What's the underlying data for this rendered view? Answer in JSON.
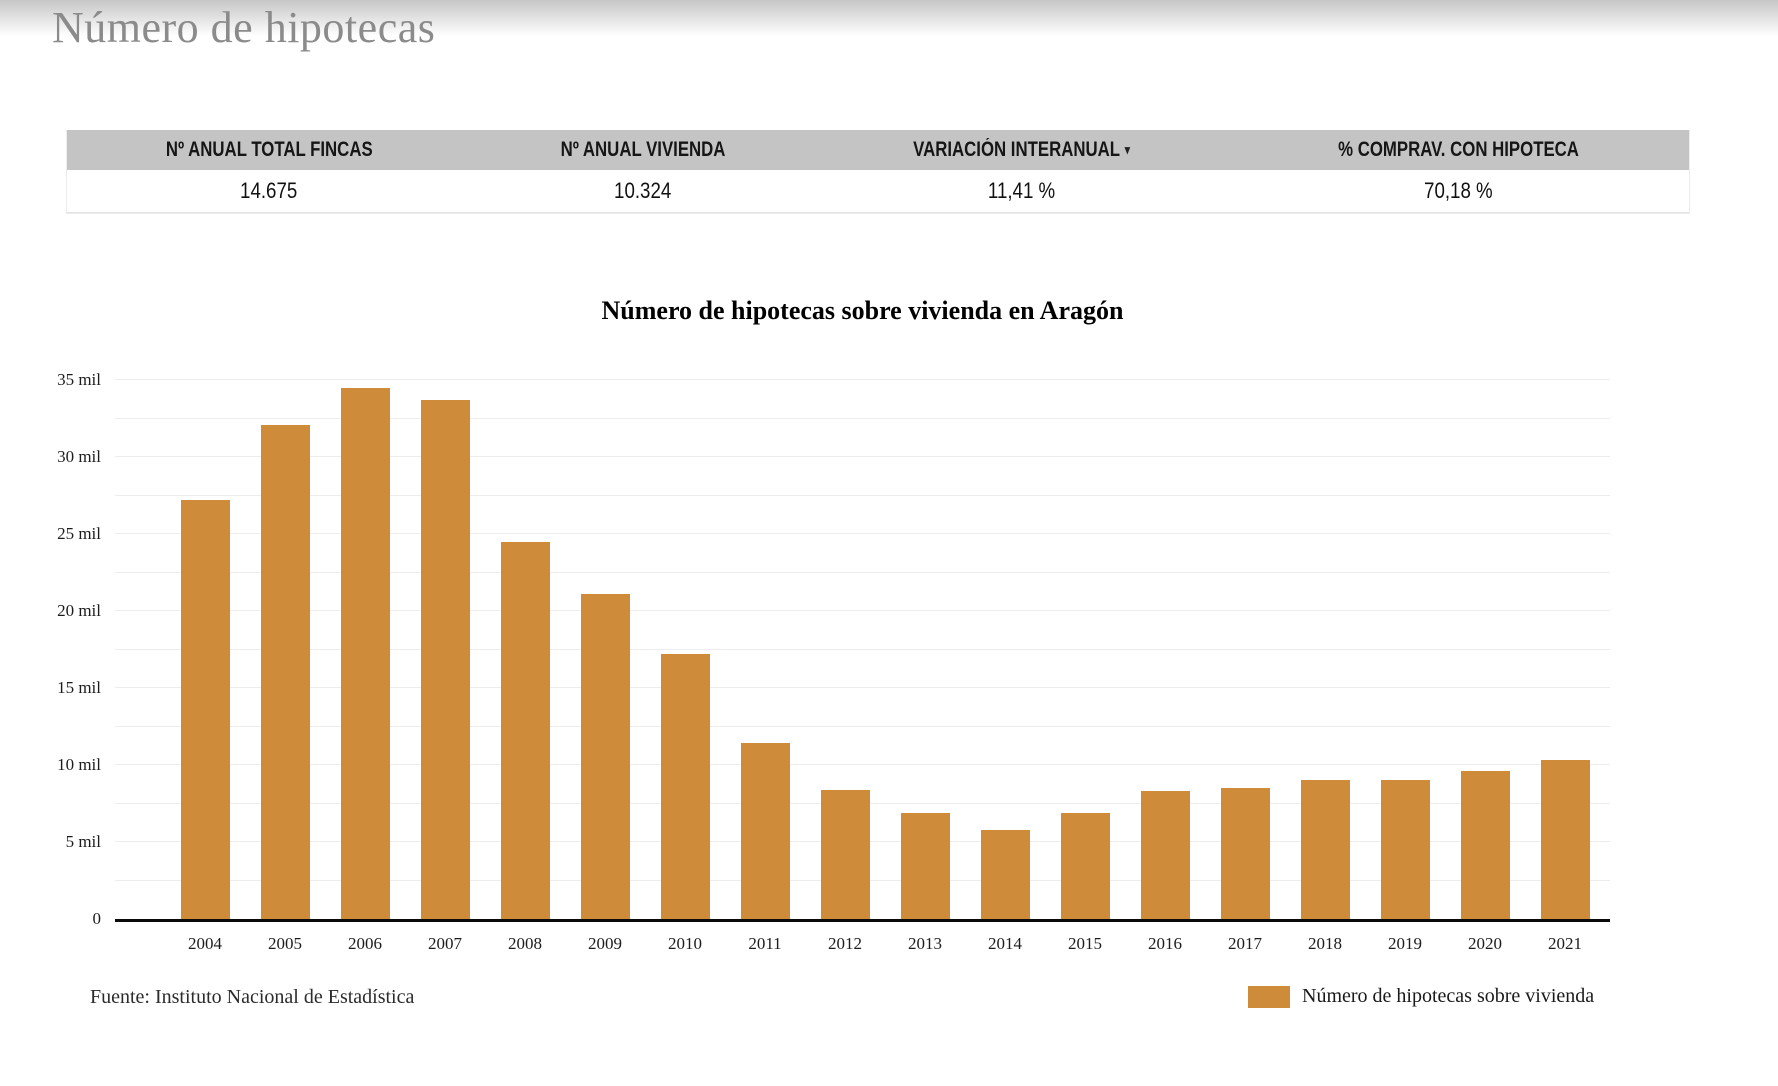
{
  "page": {
    "title": "Número de hipotecas"
  },
  "summary_table": {
    "columns": [
      {
        "label": "Nº ANUAL TOTAL FINCAS"
      },
      {
        "label": "Nº ANUAL VIVIENDA"
      },
      {
        "label": "VARIACIÓN INTERANUAL"
      },
      {
        "label": "% COMPRAV. CON HIPOTECA"
      }
    ],
    "sort_icon": "▾",
    "values": [
      "14.675",
      "10.324",
      "11,41 %",
      "70,18 %"
    ],
    "header_bg": "#c4c4c4"
  },
  "chart_data": {
    "type": "bar",
    "title": "Número de hipotecas sobre vivienda en Aragón",
    "categories": [
      "2004",
      "2005",
      "2006",
      "2007",
      "2008",
      "2009",
      "2010",
      "2011",
      "2012",
      "2013",
      "2014",
      "2015",
      "2016",
      "2017",
      "2018",
      "2019",
      "2020",
      "2021"
    ],
    "values": [
      27200,
      32100,
      34500,
      33700,
      24500,
      21100,
      17200,
      11400,
      8400,
      6900,
      5800,
      6900,
      8300,
      8500,
      9000,
      9000,
      9600,
      10324
    ],
    "ylim": [
      0,
      35000
    ],
    "ytick_step": 5000,
    "grid_step": 2500,
    "ytick_labels": [
      "0",
      "5 mil",
      "10 mil",
      "15 mil",
      "20 mil",
      "25 mil",
      "30 mil",
      "35 mil"
    ],
    "grid": true,
    "bar_color": "#ce8c3b",
    "legend": [
      {
        "label": "Número de hipotecas sobre vivienda",
        "color": "#ce8c3b"
      }
    ],
    "legend_position": "bottom-right",
    "xlabel": "",
    "ylabel": "",
    "source": "Fuente: Instituto Nacional de Estadística"
  }
}
